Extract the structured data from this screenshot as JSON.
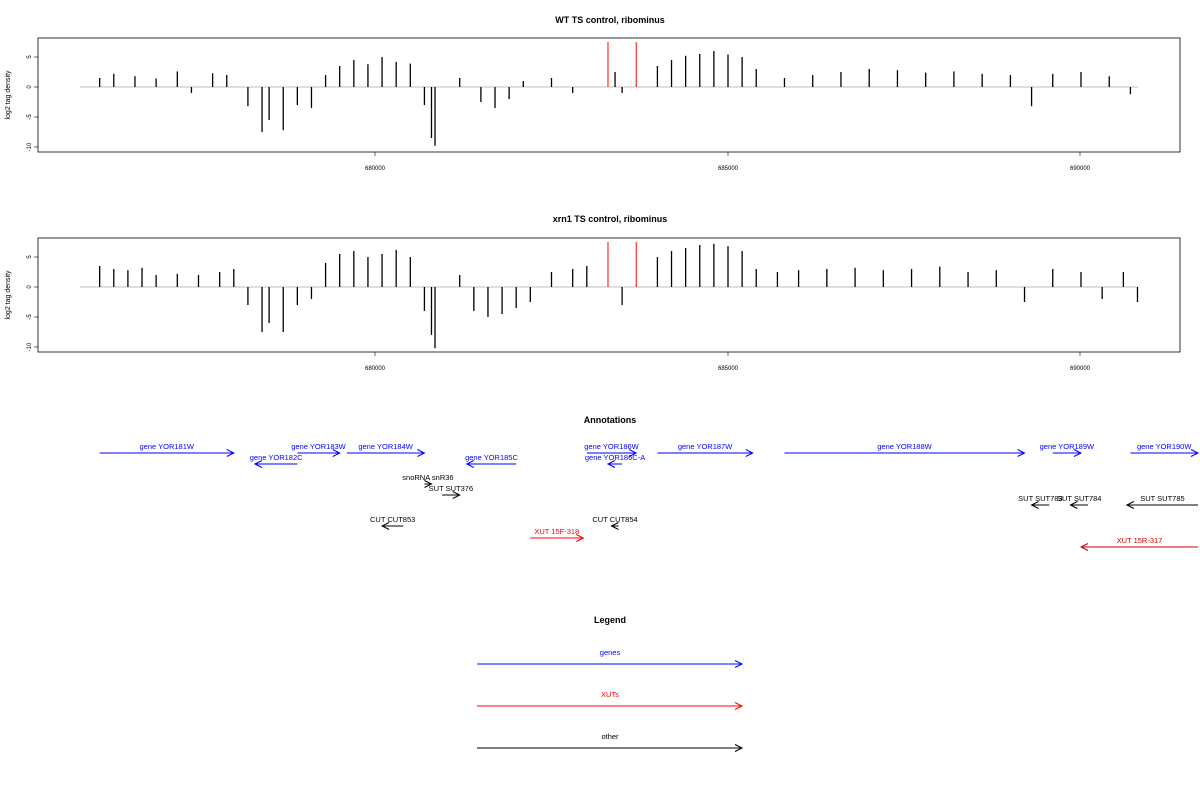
{
  "chart_data": [
    {
      "type": "bar",
      "title": "WT TS control, ribominus",
      "xlabel": "",
      "ylabel": "log2 tag density",
      "xlim": [
        675800,
        691600
      ],
      "ylim": [
        -11,
        8
      ],
      "x_ticks": [
        "680000",
        "685000",
        "690000"
      ],
      "y_ticks": [
        "-10",
        "-5",
        "0",
        "5"
      ],
      "grid": false,
      "markers": [
        {
          "x": 683300,
          "color": "#ff0000"
        },
        {
          "x": 683700,
          "color": "#ff0000"
        }
      ],
      "series": [
        {
          "values": [
            [
              676100,
              1.5
            ],
            [
              676300,
              2.2
            ],
            [
              676600,
              1.8
            ],
            [
              676900,
              1.4
            ],
            [
              677200,
              2.6
            ],
            [
              677400,
              -1.0
            ],
            [
              677700,
              2.3
            ],
            [
              677900,
              2.0
            ],
            [
              678200,
              -3.2
            ],
            [
              678400,
              -7.5
            ],
            [
              678500,
              -5.5
            ],
            [
              678700,
              -7.2
            ],
            [
              678900,
              -3.0
            ],
            [
              679100,
              -3.5
            ],
            [
              679300,
              2.0
            ],
            [
              679500,
              3.5
            ],
            [
              679700,
              4.5
            ],
            [
              679900,
              3.8
            ],
            [
              680100,
              5.0
            ],
            [
              680300,
              4.2
            ],
            [
              680500,
              3.9
            ],
            [
              680700,
              -3.0
            ],
            [
              680800,
              -8.5
            ],
            [
              680850,
              -9.8
            ],
            [
              681200,
              1.5
            ],
            [
              681500,
              -2.5
            ],
            [
              681700,
              -3.5
            ],
            [
              681900,
              -2.0
            ],
            [
              682100,
              1.0
            ],
            [
              682500,
              1.5
            ],
            [
              682800,
              -1.0
            ],
            [
              683400,
              2.5
            ],
            [
              683500,
              -1.0
            ],
            [
              684000,
              3.5
            ],
            [
              684200,
              4.5
            ],
            [
              684400,
              5.2
            ],
            [
              684600,
              5.5
            ],
            [
              684800,
              6.0
            ],
            [
              685000,
              5.4
            ],
            [
              685200,
              5.0
            ],
            [
              685400,
              3.0
            ],
            [
              685800,
              1.5
            ],
            [
              686200,
              2.0
            ],
            [
              686600,
              2.5
            ],
            [
              687000,
              3.0
            ],
            [
              687400,
              2.8
            ],
            [
              687800,
              2.4
            ],
            [
              688200,
              2.6
            ],
            [
              688600,
              2.2
            ],
            [
              689000,
              2.0
            ],
            [
              689300,
              -3.2
            ],
            [
              689600,
              2.2
            ],
            [
              690000,
              2.5
            ],
            [
              690400,
              1.8
            ],
            [
              690700,
              -1.2
            ]
          ]
        }
      ]
    },
    {
      "type": "bar",
      "title": "xrn1 TS control, ribominus",
      "xlabel": "",
      "ylabel": "log2 tag density",
      "xlim": [
        675800,
        691600
      ],
      "ylim": [
        -11,
        8
      ],
      "x_ticks": [
        "680000",
        "685000",
        "690000"
      ],
      "y_ticks": [
        "-10",
        "-5",
        "0",
        "5"
      ],
      "grid": false,
      "markers": [
        {
          "x": 683300,
          "color": "#ff0000"
        },
        {
          "x": 683700,
          "color": "#ff0000"
        }
      ],
      "series": [
        {
          "values": [
            [
              676100,
              3.5
            ],
            [
              676300,
              3.0
            ],
            [
              676500,
              2.8
            ],
            [
              676700,
              3.2
            ],
            [
              676900,
              2.0
            ],
            [
              677200,
              2.2
            ],
            [
              677500,
              2.0
            ],
            [
              677800,
              2.5
            ],
            [
              678000,
              3.0
            ],
            [
              678200,
              -3.0
            ],
            [
              678400,
              -7.5
            ],
            [
              678500,
              -6.0
            ],
            [
              678700,
              -7.5
            ],
            [
              678900,
              -3.0
            ],
            [
              679100,
              -2.0
            ],
            [
              679300,
              4.0
            ],
            [
              679500,
              5.5
            ],
            [
              679700,
              6.0
            ],
            [
              679900,
              5.0
            ],
            [
              680100,
              5.5
            ],
            [
              680300,
              6.2
            ],
            [
              680500,
              5.0
            ],
            [
              680700,
              -4.0
            ],
            [
              680800,
              -8.0
            ],
            [
              680850,
              -10.2
            ],
            [
              681200,
              2.0
            ],
            [
              681400,
              -4.0
            ],
            [
              681600,
              -5.0
            ],
            [
              681800,
              -4.5
            ],
            [
              682000,
              -3.5
            ],
            [
              682200,
              -2.5
            ],
            [
              682500,
              2.5
            ],
            [
              682800,
              3.0
            ],
            [
              683000,
              3.5
            ],
            [
              683500,
              -3.0
            ],
            [
              684000,
              5.0
            ],
            [
              684200,
              6.0
            ],
            [
              684400,
              6.5
            ],
            [
              684600,
              7.0
            ],
            [
              684800,
              7.2
            ],
            [
              685000,
              6.8
            ],
            [
              685200,
              6.0
            ],
            [
              685400,
              3.0
            ],
            [
              685700,
              2.5
            ],
            [
              686000,
              2.8
            ],
            [
              686400,
              3.0
            ],
            [
              686800,
              3.2
            ],
            [
              687200,
              2.8
            ],
            [
              687600,
              3.0
            ],
            [
              688000,
              3.4
            ],
            [
              688400,
              2.5
            ],
            [
              688800,
              2.8
            ],
            [
              689200,
              -2.5
            ],
            [
              689600,
              3.0
            ],
            [
              690000,
              2.5
            ],
            [
              690300,
              -2.0
            ],
            [
              690600,
              2.5
            ],
            [
              690800,
              -2.5
            ]
          ]
        }
      ]
    }
  ],
  "annotations": {
    "title": "Annotations",
    "xlim": [
      675800,
      691600
    ],
    "items": [
      {
        "label": "gene YOR181W",
        "start": 676100,
        "end": 678000,
        "strand": "+",
        "row": 0,
        "color": "#0000ff"
      },
      {
        "label": "gene YOR182C",
        "start": 678300,
        "end": 678900,
        "strand": "-",
        "row": 1,
        "color": "#0000ff"
      },
      {
        "label": "gene YOR183W",
        "start": 678900,
        "end": 679500,
        "strand": "+",
        "row": 0,
        "color": "#0000ff"
      },
      {
        "label": "gene YOR184W",
        "start": 679600,
        "end": 680700,
        "strand": "+",
        "row": 0,
        "color": "#0000ff"
      },
      {
        "label": "gene YOR185C",
        "start": 681300,
        "end": 682000,
        "strand": "-",
        "row": 1,
        "color": "#0000ff"
      },
      {
        "label": "gene YOR186W",
        "start": 683000,
        "end": 683700,
        "strand": "+",
        "row": 0,
        "color": "#0000ff"
      },
      {
        "label": "gene YOR186C-A",
        "start": 683300,
        "end": 683500,
        "strand": "-",
        "row": 1,
        "color": "#0000ff"
      },
      {
        "label": "gene YOR187W",
        "start": 684000,
        "end": 685350,
        "strand": "+",
        "row": 0,
        "color": "#0000ff"
      },
      {
        "label": "gene YOR188W",
        "start": 685800,
        "end": 689200,
        "strand": "+",
        "row": 0,
        "color": "#0000ff"
      },
      {
        "label": "gene YOR189W",
        "start": 689600,
        "end": 690000,
        "strand": "+",
        "row": 0,
        "color": "#0000ff"
      },
      {
        "label": "gene YOR190W",
        "start": 690700,
        "end": 691800,
        "strand": "+",
        "row": 0,
        "color": "#0000ff"
      },
      {
        "label": "snoRNA snR36",
        "start": 680700,
        "end": 680800,
        "strand": "+",
        "row": 2,
        "color": "#000000"
      },
      {
        "label": "SUT SUT376",
        "start": 680950,
        "end": 681200,
        "strand": "+",
        "row": 3,
        "color": "#000000"
      },
      {
        "label": "SUT SUT783",
        "start": 689300,
        "end": 689550,
        "strand": "-",
        "row": 4,
        "color": "#000000"
      },
      {
        "label": "SUT SUT784",
        "start": 689850,
        "end": 690100,
        "strand": "-",
        "row": 4,
        "color": "#000000"
      },
      {
        "label": "SUT SUT785",
        "start": 690650,
        "end": 691800,
        "strand": "-",
        "row": 4,
        "color": "#000000"
      },
      {
        "label": "CUT CUT853",
        "start": 680100,
        "end": 680400,
        "strand": "-",
        "row": 5,
        "color": "#000000"
      },
      {
        "label": "CUT CUT854",
        "start": 683350,
        "end": 683450,
        "strand": "-",
        "row": 5,
        "color": "#000000"
      },
      {
        "label": "XUT 15F-318",
        "start": 682200,
        "end": 682950,
        "strand": "+",
        "row": 6,
        "color": "#ff0000"
      },
      {
        "label": "XUT 15R-317",
        "start": 690000,
        "end": 691800,
        "strand": "-",
        "row": 7,
        "color": "#cc0000"
      }
    ]
  },
  "legend": {
    "title": "Legend",
    "entries": [
      {
        "label": "genes",
        "color": "#0000ff"
      },
      {
        "label": "XUTs",
        "color": "#ff0000"
      },
      {
        "label": "other",
        "color": "#000000"
      }
    ]
  }
}
